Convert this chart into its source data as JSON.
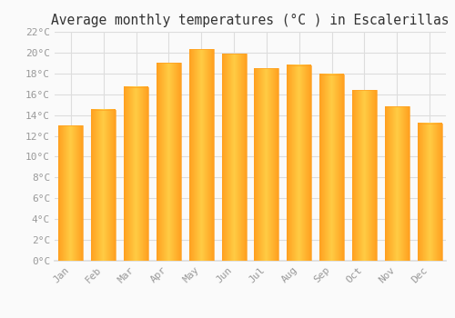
{
  "title": "Average monthly temperatures (°C ) in Escalerillas",
  "months": [
    "Jan",
    "Feb",
    "Mar",
    "Apr",
    "May",
    "Jun",
    "Jul",
    "Aug",
    "Sep",
    "Oct",
    "Nov",
    "Dec"
  ],
  "values": [
    13.0,
    14.5,
    16.7,
    19.0,
    20.3,
    19.9,
    18.5,
    18.8,
    17.9,
    16.4,
    14.8,
    13.2
  ],
  "bar_color_light": "#FFCC44",
  "bar_color_dark": "#FFA020",
  "background_color": "#FAFAFA",
  "grid_color": "#DDDDDD",
  "ylim": [
    0,
    22
  ],
  "ytick_step": 2,
  "title_fontsize": 10.5,
  "tick_fontsize": 8,
  "tick_color": "#999999",
  "label_color": "#555555",
  "font_family": "monospace",
  "bar_width": 0.75
}
